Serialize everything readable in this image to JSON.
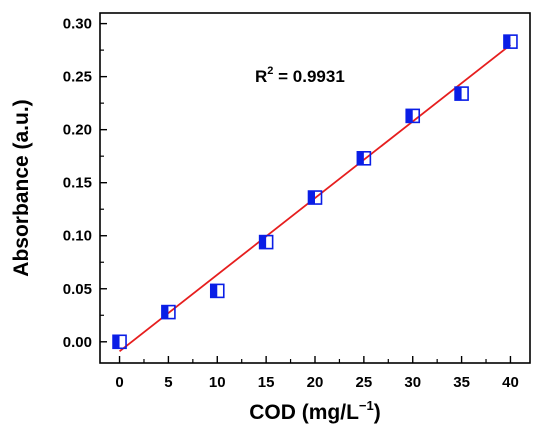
{
  "chart_data": {
    "type": "scatter",
    "x": [
      0,
      5,
      10,
      15,
      20,
      25,
      30,
      35,
      40
    ],
    "y": [
      0.0,
      0.028,
      0.048,
      0.094,
      0.136,
      0.173,
      0.213,
      0.234,
      0.283
    ],
    "fit_line": {
      "x": [
        0,
        40
      ],
      "y": [
        -0.009,
        0.28
      ]
    },
    "xlabel": "COD (mg/L",
    "xlabel_sup": "−1",
    "xlabel_suffix": ")",
    "ylabel": "Absorbance (a.u.)",
    "x_ticks": [
      "0",
      "5",
      "10",
      "15",
      "20",
      "25",
      "30",
      "35",
      "40"
    ],
    "y_ticks": [
      "0.00",
      "0.05",
      "0.10",
      "0.15",
      "0.20",
      "0.25",
      "0.30"
    ],
    "xlim": [
      -2,
      42
    ],
    "ylim": [
      -0.02,
      0.31
    ],
    "annotation": {
      "prefix": "R",
      "sup": "2",
      "suffix": " = 0.9931"
    },
    "colors": {
      "marker": "#0a1ee6",
      "fit": "#e61e1e",
      "axes": "#000000"
    },
    "marker_style": "half-filled-square",
    "grid": false
  }
}
